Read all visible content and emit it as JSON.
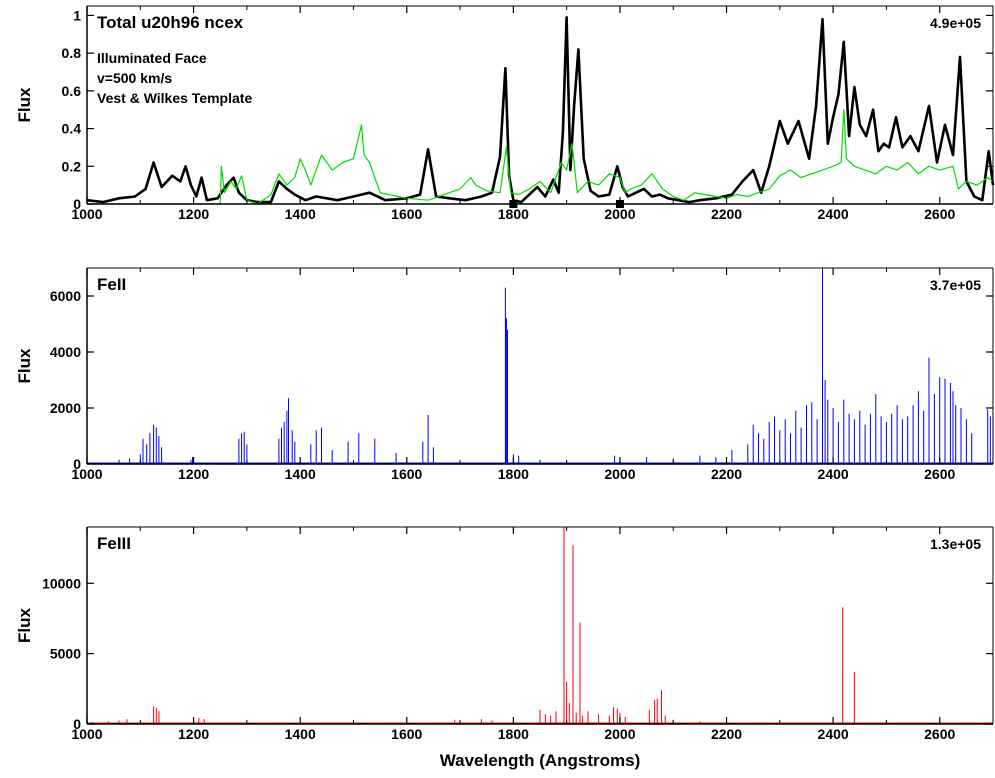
{
  "chart_data": [
    {
      "id": "total",
      "type": "line",
      "title": "Total u20h96 ncex",
      "annotations": [
        "Illuminated Face",
        "v=500 km/s",
        "Vest & Wilkes Template"
      ],
      "scale_label": "4.9e+05",
      "xlabel": "",
      "ylabel": "Flux",
      "xlim": [
        1000,
        2700
      ],
      "ylim": [
        0,
        1.05
      ],
      "xticks": [
        1000,
        1200,
        1400,
        1600,
        1800,
        2000,
        2200,
        2400,
        2600
      ],
      "yticks": [
        0,
        0.2,
        0.4,
        0.6,
        0.8,
        1
      ],
      "ytick_labels": [
        "0",
        "0.2",
        "0.4",
        "0.6",
        "0.8",
        "1"
      ],
      "markers": [
        1800,
        2000
      ],
      "series": [
        {
          "color": "#000000",
          "x": [
            1000,
            1030,
            1060,
            1090,
            1110,
            1125,
            1140,
            1160,
            1175,
            1185,
            1195,
            1205,
            1215,
            1225,
            1245,
            1262,
            1275,
            1285,
            1300,
            1320,
            1345,
            1360,
            1375,
            1390,
            1410,
            1430,
            1450,
            1470,
            1500,
            1530,
            1560,
            1600,
            1625,
            1640,
            1655,
            1680,
            1710,
            1740,
            1760,
            1775,
            1785,
            1792,
            1800,
            1815,
            1830,
            1845,
            1860,
            1875,
            1885,
            1893,
            1900,
            1907,
            1914,
            1922,
            1932,
            1945,
            1960,
            1980,
            1995,
            2005,
            2015,
            2030,
            2045,
            2060,
            2075,
            2090,
            2110,
            2130,
            2150,
            2180,
            2210,
            2230,
            2250,
            2265,
            2280,
            2300,
            2315,
            2335,
            2355,
            2368,
            2380,
            2390,
            2400,
            2410,
            2420,
            2430,
            2440,
            2450,
            2462,
            2475,
            2485,
            2495,
            2505,
            2518,
            2530,
            2545,
            2560,
            2580,
            2595,
            2610,
            2625,
            2638,
            2650,
            2665,
            2680,
            2692,
            2700
          ],
          "y": [
            0.02,
            0.01,
            0.03,
            0.04,
            0.08,
            0.22,
            0.09,
            0.15,
            0.12,
            0.2,
            0.1,
            0.04,
            0.14,
            0.02,
            0.03,
            0.1,
            0.14,
            0.06,
            0.02,
            0.01,
            0.01,
            0.12,
            0.08,
            0.05,
            0.02,
            0.04,
            0.03,
            0.02,
            0.04,
            0.06,
            0.02,
            0.03,
            0.05,
            0.29,
            0.04,
            0.03,
            0.02,
            0.04,
            0.06,
            0.25,
            0.72,
            0.15,
            0.02,
            0.01,
            0.05,
            0.09,
            0.04,
            0.13,
            0.06,
            0.38,
            0.99,
            0.18,
            0.52,
            0.82,
            0.24,
            0.07,
            0.04,
            0.05,
            0.2,
            0.09,
            0.04,
            0.06,
            0.08,
            0.04,
            0.05,
            0.03,
            0.02,
            0.01,
            0.02,
            0.03,
            0.05,
            0.12,
            0.18,
            0.06,
            0.2,
            0.44,
            0.32,
            0.44,
            0.24,
            0.52,
            0.98,
            0.32,
            0.46,
            0.58,
            0.86,
            0.36,
            0.62,
            0.42,
            0.36,
            0.5,
            0.28,
            0.32,
            0.3,
            0.46,
            0.3,
            0.36,
            0.28,
            0.52,
            0.22,
            0.42,
            0.26,
            0.78,
            0.12,
            0.04,
            0.02,
            0.28,
            0.1
          ]
        },
        {
          "color": "#00dd00",
          "x": [
            1000,
            1250,
            1252,
            1258,
            1270,
            1280,
            1290,
            1300,
            1320,
            1345,
            1360,
            1375,
            1390,
            1400,
            1410,
            1420,
            1440,
            1460,
            1480,
            1500,
            1515,
            1520,
            1530,
            1550,
            1600,
            1640,
            1700,
            1720,
            1730,
            1750,
            1775,
            1787,
            1795,
            1810,
            1830,
            1850,
            1870,
            1890,
            1900,
            1910,
            1920,
            1940,
            1960,
            1980,
            2000,
            2010,
            2020,
            2040,
            2060,
            2080,
            2100,
            2120,
            2140,
            2180,
            2200,
            2220,
            2240,
            2260,
            2280,
            2300,
            2320,
            2340,
            2360,
            2380,
            2400,
            2415,
            2420,
            2425,
            2440,
            2460,
            2480,
            2500,
            2520,
            2540,
            2560,
            2580,
            2600,
            2625,
            2635,
            2650,
            2670,
            2690,
            2700
          ],
          "y": [
            0,
            0,
            0.2,
            0.06,
            0.12,
            0.08,
            0.15,
            0.02,
            0.0,
            0.05,
            0.16,
            0.1,
            0.14,
            0.24,
            0.18,
            0.1,
            0.26,
            0.18,
            0.22,
            0.24,
            0.42,
            0.26,
            0.22,
            0.06,
            0.03,
            0.02,
            0.08,
            0.14,
            0.1,
            0.07,
            0.06,
            0.3,
            0.06,
            0.05,
            0.08,
            0.12,
            0.06,
            0.22,
            0.18,
            0.32,
            0.06,
            0.12,
            0.1,
            0.16,
            0.14,
            0.06,
            0.08,
            0.1,
            0.16,
            0.08,
            0.04,
            0.02,
            0.06,
            0.04,
            0.03,
            0.05,
            0.04,
            0.06,
            0.08,
            0.15,
            0.18,
            0.14,
            0.16,
            0.18,
            0.2,
            0.22,
            0.5,
            0.24,
            0.2,
            0.18,
            0.16,
            0.2,
            0.18,
            0.22,
            0.16,
            0.2,
            0.18,
            0.2,
            0.08,
            0.12,
            0.1,
            0.14,
            0.12
          ]
        }
      ]
    },
    {
      "id": "feii",
      "type": "line",
      "title": "FeII",
      "scale_label": "3.7e+05",
      "xlabel": "",
      "ylabel": "Flux",
      "xlim": [
        1000,
        2700
      ],
      "ylim": [
        0,
        7000
      ],
      "xticks": [
        1000,
        1200,
        1400,
        1600,
        1800,
        2000,
        2200,
        2400,
        2600
      ],
      "yticks": [
        0,
        2000,
        4000,
        6000
      ],
      "ytick_labels": [
        "0",
        "2000",
        "4000",
        "6000"
      ],
      "series": [
        {
          "color": "#0000ff",
          "peaks": [
            [
              1060,
              150
            ],
            [
              1080,
              200
            ],
            [
              1100,
              350
            ],
            [
              1105,
              900
            ],
            [
              1112,
              700
            ],
            [
              1118,
              1100
            ],
            [
              1125,
              1400
            ],
            [
              1130,
              1300
            ],
            [
              1135,
              1000
            ],
            [
              1140,
              600
            ],
            [
              1195,
              150
            ],
            [
              1198,
              250
            ],
            [
              1285,
              900
            ],
            [
              1290,
              1100
            ],
            [
              1295,
              1150
            ],
            [
              1300,
              700
            ],
            [
              1360,
              900
            ],
            [
              1365,
              1300
            ],
            [
              1370,
              1500
            ],
            [
              1375,
              1900
            ],
            [
              1378,
              2350
            ],
            [
              1385,
              1200
            ],
            [
              1390,
              800
            ],
            [
              1420,
              700
            ],
            [
              1430,
              1200
            ],
            [
              1440,
              1300
            ],
            [
              1460,
              500
            ],
            [
              1490,
              800
            ],
            [
              1510,
              1100
            ],
            [
              1540,
              900
            ],
            [
              1580,
              400
            ],
            [
              1630,
              800
            ],
            [
              1640,
              1750
            ],
            [
              1650,
              600
            ],
            [
              1785,
              6300
            ],
            [
              1787,
              5200
            ],
            [
              1789,
              4800
            ],
            [
              1800,
              350
            ],
            [
              1810,
              300
            ],
            [
              1850,
              150
            ],
            [
              1900,
              100
            ],
            [
              1990,
              300
            ],
            [
              2000,
              150
            ],
            [
              2050,
              250
            ],
            [
              2100,
              200
            ],
            [
              2150,
              300
            ],
            [
              2180,
              250
            ],
            [
              2210,
              500
            ],
            [
              2240,
              700
            ],
            [
              2250,
              1400
            ],
            [
              2260,
              1100
            ],
            [
              2270,
              900
            ],
            [
              2280,
              1500
            ],
            [
              2290,
              1700
            ],
            [
              2300,
              1200
            ],
            [
              2310,
              1600
            ],
            [
              2320,
              1100
            ],
            [
              2330,
              1900
            ],
            [
              2340,
              1300
            ],
            [
              2350,
              2100
            ],
            [
              2360,
              2200
            ],
            [
              2370,
              1600
            ],
            [
              2380,
              7000
            ],
            [
              2385,
              3000
            ],
            [
              2390,
              2300
            ],
            [
              2400,
              2000
            ],
            [
              2410,
              1500
            ],
            [
              2420,
              2300
            ],
            [
              2430,
              1800
            ],
            [
              2440,
              1600
            ],
            [
              2450,
              1900
            ],
            [
              2460,
              1400
            ],
            [
              2470,
              1800
            ],
            [
              2480,
              2500
            ],
            [
              2490,
              1700
            ],
            [
              2500,
              1500
            ],
            [
              2510,
              1800
            ],
            [
              2520,
              2100
            ],
            [
              2530,
              1600
            ],
            [
              2540,
              1700
            ],
            [
              2550,
              2100
            ],
            [
              2560,
              2600
            ],
            [
              2570,
              1900
            ],
            [
              2580,
              3800
            ],
            [
              2590,
              2500
            ],
            [
              2600,
              3100
            ],
            [
              2610,
              3050
            ],
            [
              2620,
              2900
            ],
            [
              2625,
              2600
            ],
            [
              2630,
              2100
            ],
            [
              2640,
              2000
            ],
            [
              2650,
              1600
            ],
            [
              2660,
              1100
            ],
            [
              2690,
              1950
            ],
            [
              2695,
              1700
            ]
          ]
        }
      ]
    },
    {
      "id": "feiii",
      "type": "line",
      "title": "FeIII",
      "scale_label": "1.3e+05",
      "xlabel": "Wavelength (Angstroms)",
      "ylabel": "Flux",
      "xlim": [
        1000,
        2700
      ],
      "ylim": [
        0,
        14000
      ],
      "xticks": [
        1000,
        1200,
        1400,
        1600,
        1800,
        2000,
        2200,
        2400,
        2600
      ],
      "yticks": [
        0,
        5000,
        10000
      ],
      "ytick_labels": [
        "0",
        "5000",
        "10000"
      ],
      "series": [
        {
          "color": "#ff0000",
          "peaks": [
            [
              1010,
              150
            ],
            [
              1040,
              200
            ],
            [
              1060,
              250
            ],
            [
              1075,
              350
            ],
            [
              1125,
              1250
            ],
            [
              1130,
              1150
            ],
            [
              1135,
              900
            ],
            [
              1210,
              450
            ],
            [
              1220,
              350
            ],
            [
              1300,
              100
            ],
            [
              1500,
              100
            ],
            [
              1690,
              300
            ],
            [
              1740,
              350
            ],
            [
              1760,
              250
            ],
            [
              1850,
              1000
            ],
            [
              1860,
              700
            ],
            [
              1870,
              600
            ],
            [
              1880,
              900
            ],
            [
              1895,
              14000
            ],
            [
              1900,
              3000
            ],
            [
              1905,
              1500
            ],
            [
              1912,
              12700
            ],
            [
              1918,
              800
            ],
            [
              1925,
              7200
            ],
            [
              1930,
              600
            ],
            [
              1940,
              900
            ],
            [
              1960,
              700
            ],
            [
              1980,
              600
            ],
            [
              1988,
              1200
            ],
            [
              1995,
              1100
            ],
            [
              2000,
              800
            ],
            [
              2010,
              500
            ],
            [
              2055,
              1000
            ],
            [
              2065,
              1700
            ],
            [
              2070,
              1800
            ],
            [
              2078,
              2400
            ],
            [
              2085,
              600
            ],
            [
              2100,
              300
            ],
            [
              2150,
              200
            ],
            [
              2300,
              150
            ],
            [
              2418,
              8300
            ],
            [
              2440,
              3700
            ],
            [
              2500,
              150
            ],
            [
              2600,
              150
            ],
            [
              2650,
              100
            ]
          ]
        }
      ]
    }
  ]
}
